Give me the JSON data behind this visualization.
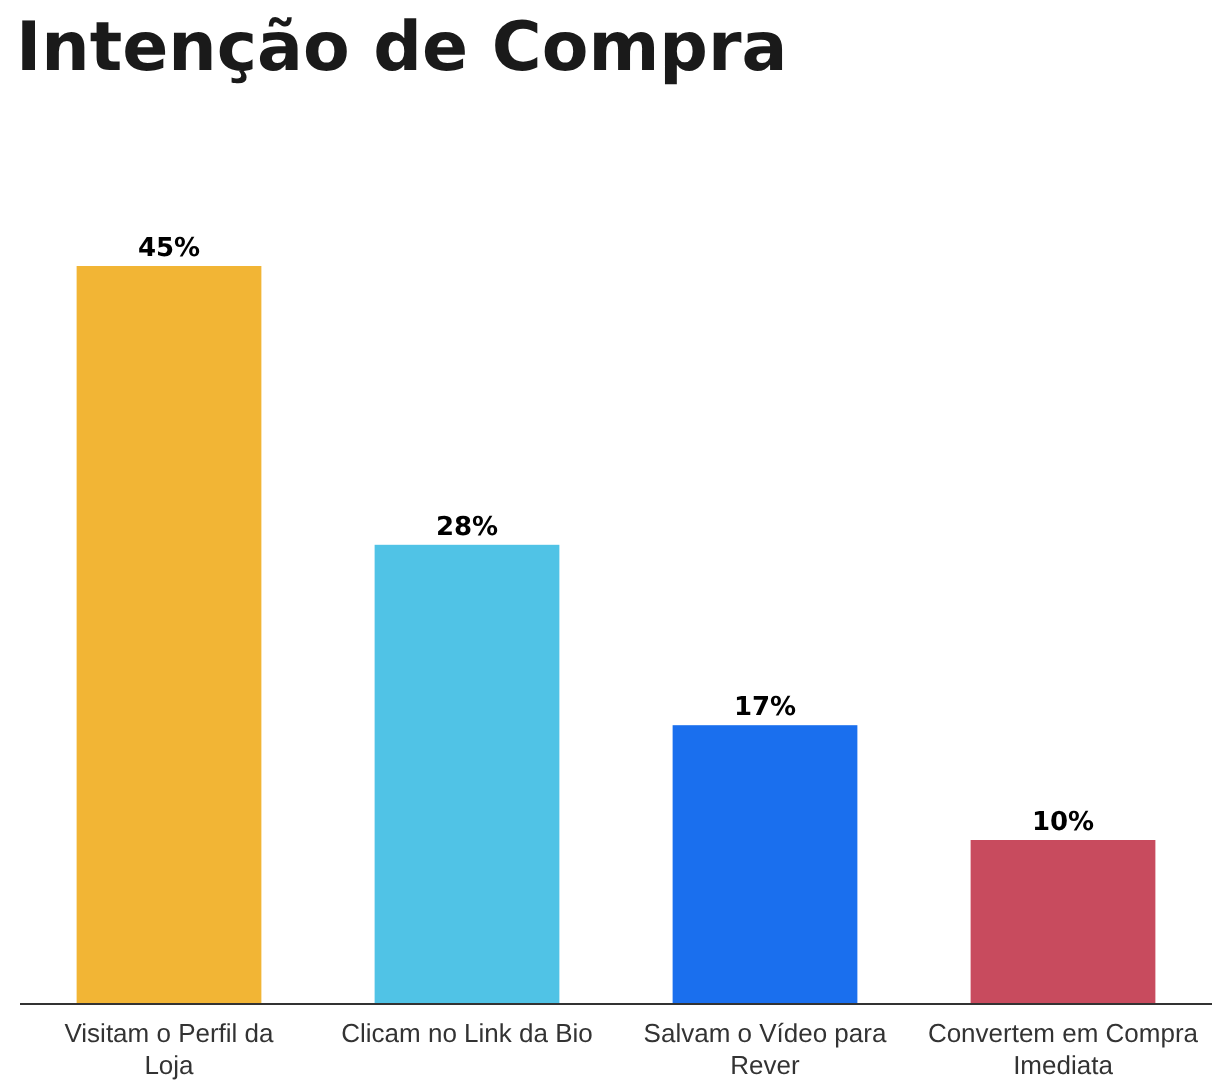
{
  "chart_data": {
    "type": "bar",
    "title": "Intenção de Compra",
    "categories": [
      "Visitam o Perfil da Loja",
      "Clicam no Link da Bio",
      "Salvam o Vídeo para Rever",
      "Convertem em Compra Imediata"
    ],
    "values": [
      45,
      28,
      17,
      10
    ],
    "colors": [
      "#f2b535",
      "#50c3e6",
      "#1a6fee",
      "#c84b5e"
    ],
    "value_labels": [
      "45%",
      "28%",
      "17%",
      "10%"
    ]
  }
}
